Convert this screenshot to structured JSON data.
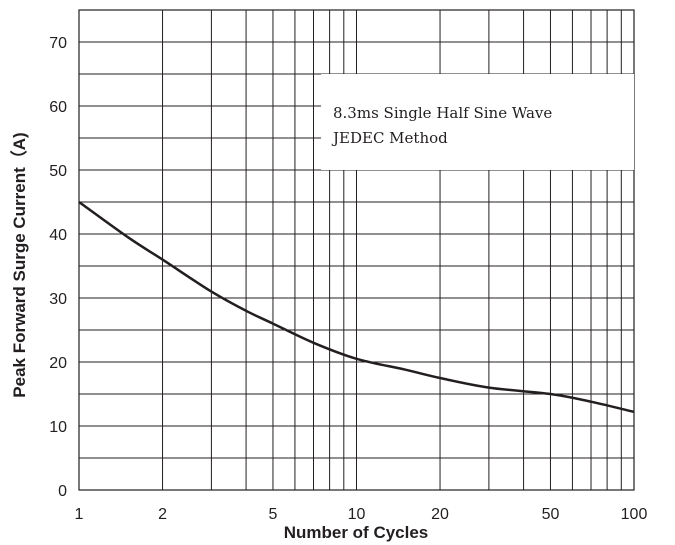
{
  "chart_data": {
    "type": "line",
    "xlabel": "Number of Cycles",
    "ylabel": "Peak Forward Surge Current（A)",
    "x_scale": "log",
    "xlim": [
      1,
      100
    ],
    "ylim": [
      0,
      75
    ],
    "x_ticks": [
      1,
      2,
      5,
      10,
      20,
      50,
      100
    ],
    "x_tick_labels": [
      "1",
      "2",
      "5",
      "10",
      "20",
      "50",
      "100"
    ],
    "y_ticks": [
      0,
      10,
      20,
      30,
      40,
      50,
      60,
      70
    ],
    "y_tick_labels": [
      "0",
      "10",
      "20",
      "30",
      "40",
      "50",
      "60",
      "70"
    ],
    "grid": true,
    "annotation": {
      "lines": [
        "8.3ms Single Half Sine Wave",
        "JEDEC Method"
      ]
    },
    "series": [
      {
        "x": [
          1,
          1.5,
          2,
          3,
          4,
          5,
          7,
          10,
          15,
          20,
          30,
          50,
          70,
          100
        ],
        "y": [
          45,
          39.5,
          36,
          31,
          28,
          26,
          23,
          20.5,
          18.8,
          17.5,
          16,
          15,
          13.8,
          12.2
        ]
      }
    ],
    "colors": {
      "line": "#231f20",
      "grid": "#231f20"
    }
  }
}
